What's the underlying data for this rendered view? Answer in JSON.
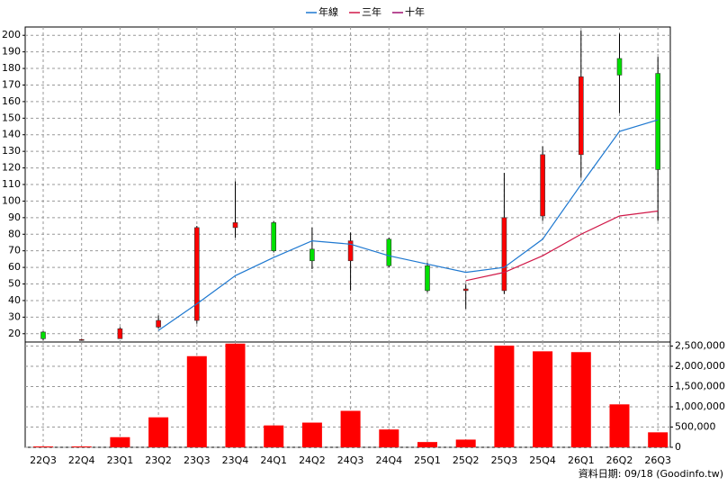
{
  "chart_data": [
    {
      "type": "candlestick",
      "open": [
        21,
        16.5,
        17,
        24,
        28,
        84,
        87,
        71,
        64,
        77,
        61,
        46,
        46,
        91,
        128,
        186,
        177
      ],
      "high": [
        21.5,
        17,
        24,
        31,
        85,
        112,
        88,
        84,
        81,
        78,
        63,
        50,
        117,
        133,
        203,
        201,
        187
      ],
      "low": [
        16,
        16,
        17,
        23,
        26,
        78,
        69,
        59,
        46,
        60,
        45,
        35,
        44,
        88,
        114,
        153,
        88
      ],
      "close": [
        17,
        16.5,
        23,
        28,
        84,
        87,
        70,
        64,
        76,
        61,
        46,
        47,
        90,
        128,
        175,
        176,
        119
      ],
      "up_color": "#ff0000",
      "down_color": "#00e000",
      "series": [
        {
          "name": "年線",
          "color": "#1e78d0",
          "values": [
            null,
            null,
            null,
            22,
            38,
            55,
            66,
            76,
            74,
            67,
            62,
            57,
            60,
            77,
            110,
            142,
            149
          ]
        },
        {
          "name": "三年",
          "color": "#d01848",
          "values": [
            null,
            null,
            null,
            null,
            null,
            null,
            null,
            null,
            null,
            null,
            null,
            52,
            57,
            67,
            80,
            91,
            94
          ]
        },
        {
          "name": "十年",
          "color": "#a01070",
          "values": [
            null,
            null,
            null,
            null,
            null,
            null,
            null,
            null,
            null,
            null,
            null,
            null,
            null,
            null,
            null,
            null,
            null
          ]
        }
      ],
      "ylim": [
        15,
        205
      ],
      "yticks": [
        20,
        30,
        40,
        50,
        60,
        70,
        80,
        90,
        100,
        110,
        120,
        130,
        140,
        150,
        160,
        170,
        180,
        190,
        200
      ],
      "grid": true,
      "legend": "top"
    },
    {
      "type": "bar",
      "categories": [
        "22Q3",
        "22Q4",
        "23Q1",
        "23Q2",
        "23Q3",
        "23Q4",
        "24Q1",
        "24Q2",
        "24Q3",
        "24Q4",
        "25Q1",
        "25Q2",
        "25Q3",
        "25Q4",
        "26Q1",
        "26Q2",
        "26Q3"
      ],
      "values": [
        20000,
        20000,
        250000,
        740000,
        2250000,
        2560000,
        540000,
        610000,
        900000,
        440000,
        130000,
        190000,
        2510000,
        2370000,
        2350000,
        1060000,
        370000
      ],
      "color": "#ff0000",
      "ylim": [
        0,
        2600000
      ],
      "yticks": [
        0,
        {
          "value": 500000,
          "label": "500,000"
        },
        {
          "value": 1000000,
          "label": "1,000,000"
        },
        {
          "value": 1500000,
          "label": "1,500,000"
        },
        {
          "value": 2000000,
          "label": "2,000,000"
        },
        {
          "value": 2500000,
          "label": "2,500,000"
        }
      ],
      "grid": true,
      "footer": "資料日期: 09/18 (Goodinfo.tw)"
    }
  ]
}
